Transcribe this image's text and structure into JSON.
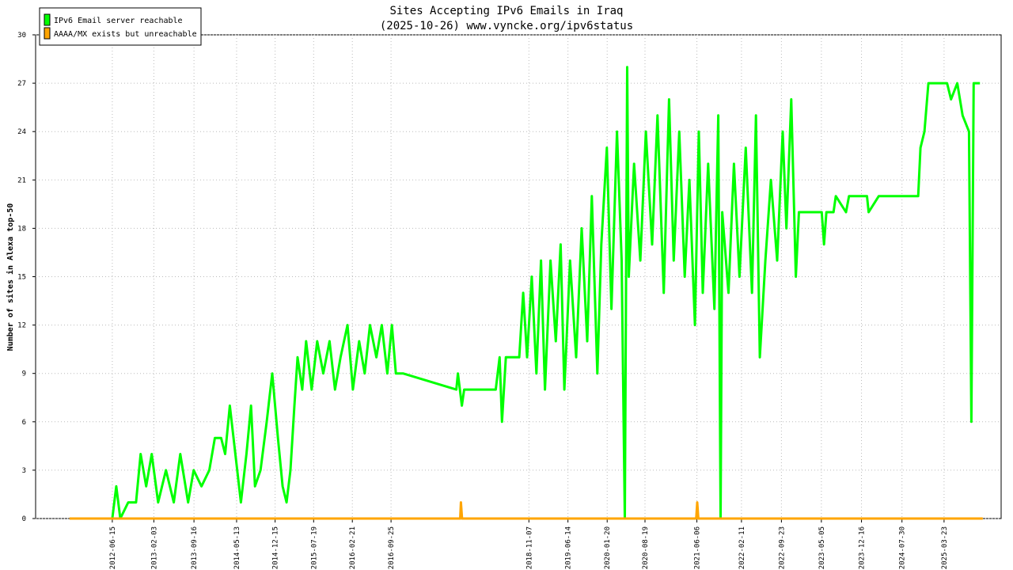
{
  "chart_data": {
    "type": "line",
    "title": "Sites Accepting IPv6 Emails in Iraq",
    "subtitle": "(2025-10-26) www.vyncke.org/ipv6status",
    "y_label": "Number of sites in Alexa top-50",
    "xlim": [
      "2011-04-12",
      "2026-02-06"
    ],
    "xticks": [
      "2012-06-15",
      "2013-02-03",
      "2013-09-16",
      "2014-05-13",
      "2014-12-15",
      "2015-07-19",
      "2016-02-21",
      "2016-09-25",
      "2018-11-07",
      "2019-06-14",
      "2020-01-20",
      "2020-08-19",
      "2021-06-06",
      "2022-02-11",
      "2022-09-23",
      "2023-05-05",
      "2023-12-16",
      "2024-07-30",
      "2025-03-23"
    ],
    "ylim": [
      0,
      30
    ],
    "yticks": [
      0,
      3,
      6,
      9,
      12,
      15,
      18,
      21,
      24,
      27,
      30
    ],
    "grid": true,
    "legend": "top-left",
    "series": [
      {
        "name": "IPv6 Email server reachable",
        "color": "#00ff00",
        "x": [
          "2012-06-15",
          "2012-07-07",
          "2012-07-30",
          "2012-09-12",
          "2012-10-26",
          "2012-11-21",
          "2012-12-22",
          "2013-01-22",
          "2013-02-27",
          "2013-04-12",
          "2013-05-26",
          "2013-07-01",
          "2013-08-14",
          "2013-09-14",
          "2013-10-28",
          "2013-12-11",
          "2014-01-11",
          "2014-02-15",
          "2014-03-10",
          "2014-04-05",
          "2014-05-06",
          "2014-06-06",
          "2014-07-07",
          "2014-08-02",
          "2014-08-24",
          "2014-09-24",
          "2014-10-29",
          "2014-11-29",
          "2014-12-31",
          "2015-01-26",
          "2015-02-17",
          "2015-03-11",
          "2015-04-02",
          "2015-04-20",
          "2015-05-16",
          "2015-06-07",
          "2015-07-08",
          "2015-08-08",
          "2015-09-11",
          "2015-10-16",
          "2015-11-16",
          "2015-12-17",
          "2016-01-25",
          "2016-02-24",
          "2016-03-30",
          "2016-04-30",
          "2016-05-30",
          "2016-07-05",
          "2016-08-04",
          "2016-09-04",
          "2016-09-30",
          "2016-10-22",
          "2016-12-01",
          "2017-09-26",
          "2017-10-05",
          "2017-10-27",
          "2017-11-09",
          "2018-05-05",
          "2018-05-27",
          "2018-06-09",
          "2018-07-01",
          "2018-07-23",
          "2018-09-14",
          "2018-10-06",
          "2018-10-28",
          "2018-11-23",
          "2018-12-19",
          "2019-01-14",
          "2019-02-05",
          "2019-03-08",
          "2019-04-07",
          "2019-05-04",
          "2019-05-25",
          "2019-06-26",
          "2019-07-30",
          "2019-08-30",
          "2019-09-30",
          "2019-10-26",
          "2019-11-26",
          "2019-12-18",
          "2020-01-18",
          "2020-02-13",
          "2020-03-15",
          "2020-04-10",
          "2020-04-28",
          "2020-05-11",
          "2020-05-20",
          "2020-06-19",
          "2020-07-24",
          "2020-08-24",
          "2020-09-28",
          "2020-10-28",
          "2020-12-02",
          "2021-01-01",
          "2021-01-27",
          "2021-02-27",
          "2021-03-30",
          "2021-04-25",
          "2021-05-26",
          "2021-06-17",
          "2021-07-09",
          "2021-08-08",
          "2021-09-12",
          "2021-10-04",
          "2021-10-17",
          "2021-10-26",
          "2021-11-30",
          "2021-12-31",
          "2022-01-31",
          "2022-03-07",
          "2022-04-11",
          "2022-05-03",
          "2022-05-25",
          "2022-06-25",
          "2022-07-26",
          "2022-08-30",
          "2022-09-30",
          "2022-10-21",
          "2022-11-17",
          "2022-12-13",
          "2022-12-30",
          "2023-05-07",
          "2023-05-20",
          "2023-06-02",
          "2023-07-12",
          "2023-07-25",
          "2023-09-20",
          "2023-10-07",
          "2024-01-16",
          "2024-01-25",
          "2024-03-22",
          "2024-10-29",
          "2024-11-11",
          "2024-12-03",
          "2024-12-25",
          "2025-04-09",
          "2025-05-01",
          "2025-06-05",
          "2025-07-05",
          "2025-08-10",
          "2025-08-23",
          "2025-09-05",
          "2025-10-10"
        ],
        "values": [
          0,
          2,
          0,
          1,
          1,
          4,
          2,
          4,
          1,
          3,
          1,
          4,
          1,
          3,
          2,
          3,
          5,
          5,
          4,
          7,
          4,
          1,
          4,
          7,
          2,
          3,
          6,
          9,
          5,
          2,
          1,
          3,
          7,
          10,
          8,
          11,
          8,
          11,
          9,
          11,
          8,
          10,
          12,
          8,
          11,
          9,
          12,
          10,
          12,
          9,
          12,
          9,
          9,
          8,
          9,
          7,
          8,
          8,
          10,
          6,
          10,
          10,
          10,
          14,
          10,
          15,
          9,
          16,
          8,
          16,
          11,
          17,
          8,
          16,
          10,
          18,
          11,
          20,
          9,
          17,
          23,
          13,
          24,
          16,
          0,
          28,
          15,
          22,
          16,
          24,
          17,
          25,
          14,
          26,
          16,
          24,
          15,
          21,
          12,
          24,
          14,
          22,
          13,
          25,
          0,
          19,
          14,
          22,
          15,
          23,
          14,
          25,
          10,
          16,
          21,
          16,
          24,
          18,
          26,
          15,
          19,
          19,
          17,
          19,
          19,
          20,
          19,
          20,
          20,
          19,
          20,
          20,
          23,
          24,
          27,
          27,
          26,
          27,
          25,
          24,
          6,
          27,
          27
        ]
      },
      {
        "name": "AAAA/MX exists but unreachable",
        "color": "#ffa500",
        "x": [
          "2011-10-19",
          "2017-10-18",
          "2017-10-22",
          "2017-10-28",
          "2021-06-02",
          "2021-06-08",
          "2021-06-14",
          "2025-10-26"
        ],
        "values": [
          0,
          0,
          1,
          0,
          0,
          1,
          0,
          0
        ]
      }
    ]
  }
}
